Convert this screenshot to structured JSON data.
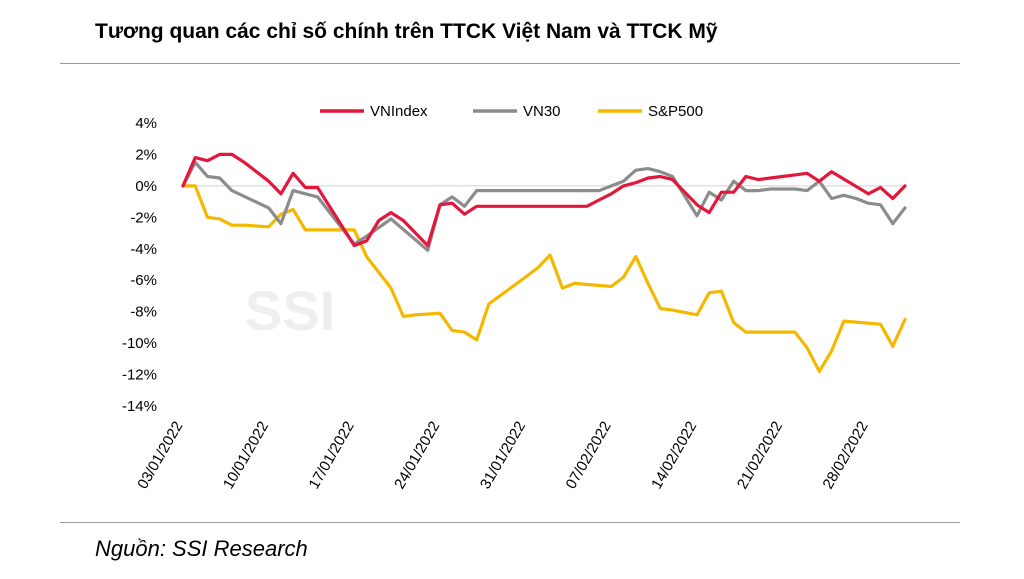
{
  "title": "Tương quan các chỉ số chính trên TTCK Việt Nam và TTCK Mỹ",
  "source": "Nguồn: SSI Research",
  "watermark": "SSI",
  "chart_data": {
    "type": "line",
    "ylim": [
      -14,
      4
    ],
    "yticks": [
      4,
      2,
      0,
      -2,
      -4,
      -6,
      -8,
      -10,
      -12,
      -14
    ],
    "ytick_labels": [
      "4%",
      "2%",
      "0%",
      "-2%",
      "-4%",
      "-6%",
      "-8%",
      "-10%",
      "-12%",
      "-14%"
    ],
    "x_range": [
      0,
      59
    ],
    "xticks": [
      {
        "label": "03/01/2022",
        "x": 0
      },
      {
        "label": "10/01/2022",
        "x": 7
      },
      {
        "label": "17/01/2022",
        "x": 14
      },
      {
        "label": "24/01/2022",
        "x": 21
      },
      {
        "label": "31/01/2022",
        "x": 28
      },
      {
        "label": "07/02/2022",
        "x": 35
      },
      {
        "label": "14/02/2022",
        "x": 42
      },
      {
        "label": "21/02/2022",
        "x": 49
      },
      {
        "label": "28/02/2022",
        "x": 56
      }
    ],
    "legend_position": "top",
    "series": [
      {
        "name": "VNIndex",
        "color": "#e2173b",
        "x": [
          0,
          1,
          2,
          3,
          4,
          5,
          7,
          8,
          9,
          10,
          11,
          14,
          15,
          16,
          17,
          18,
          20,
          21,
          22,
          23,
          24,
          25,
          26,
          27,
          28,
          29,
          30,
          31,
          32,
          33,
          34,
          35,
          36,
          37,
          38,
          39,
          40,
          42,
          43,
          44,
          45,
          46,
          47,
          48,
          49,
          50,
          51,
          52,
          53,
          56,
          57,
          58,
          59
        ],
        "values": [
          0,
          1.8,
          1.6,
          2,
          2,
          1.5,
          0.3,
          -0.5,
          0.8,
          -0.1,
          -0.1,
          -3.8,
          -3.5,
          -2.2,
          -1.7,
          -2.2,
          -3.8,
          -1.2,
          -1.1,
          -1.8,
          -1.3,
          -1.3,
          -1.3,
          -1.3,
          -1.3,
          -1.3,
          -1.3,
          -1.3,
          -1.3,
          -1.3,
          -0.9,
          -0.5,
          0,
          0.2,
          0.5,
          0.6,
          0.4,
          -1.2,
          -1.7,
          -0.4,
          -0.4,
          0.6,
          0.4,
          0.5,
          0.6,
          0.7,
          0.8,
          0.3,
          0.9,
          -0.5,
          -0.1,
          -0.8,
          0
        ]
      },
      {
        "name": "VN30",
        "color": "#8c8c8c",
        "x": [
          0,
          1,
          2,
          3,
          4,
          7,
          8,
          9,
          10,
          11,
          14,
          15,
          17,
          20,
          21,
          22,
          23,
          24,
          25,
          26,
          27,
          28,
          29,
          30,
          31,
          32,
          33,
          34,
          35,
          36,
          37,
          38,
          39,
          40,
          42,
          43,
          44,
          45,
          46,
          47,
          48,
          49,
          50,
          51,
          52,
          53,
          54,
          55,
          56,
          57,
          58,
          59
        ],
        "values": [
          0,
          1.5,
          0.6,
          0.5,
          -0.3,
          -1.4,
          -2.4,
          -0.3,
          -0.5,
          -0.7,
          -3.7,
          -3.2,
          -2.1,
          -4.1,
          -1.2,
          -0.7,
          -1.3,
          -0.3,
          -0.3,
          -0.3,
          -0.3,
          -0.3,
          -0.3,
          -0.3,
          -0.3,
          -0.3,
          -0.3,
          -0.3,
          0,
          0.3,
          1,
          1.1,
          0.9,
          0.6,
          -1.9,
          -0.4,
          -0.9,
          0.3,
          -0.3,
          -0.3,
          -0.2,
          -0.2,
          -0.2,
          -0.3,
          0.3,
          -0.8,
          -0.6,
          -0.8,
          -1.1,
          -1.2,
          -2.4,
          -1.4
        ]
      },
      {
        "name": "S&P500",
        "color": "#f5b800",
        "x": [
          0,
          1,
          2,
          3,
          4,
          5,
          7,
          8,
          9,
          10,
          11,
          14,
          15,
          16,
          17,
          18,
          19,
          21,
          22,
          23,
          24,
          25,
          28,
          29,
          30,
          31,
          32,
          35,
          36,
          37,
          38,
          39,
          40,
          42,
          43,
          44,
          45,
          46,
          49,
          50,
          51,
          52,
          53,
          54,
          57,
          58,
          59
        ],
        "values": [
          0,
          0,
          -2,
          -2.1,
          -2.5,
          -2.5,
          -2.6,
          -1.8,
          -1.5,
          -2.8,
          -2.8,
          -2.8,
          -4.5,
          -5.5,
          -6.5,
          -8.3,
          -8.2,
          -8.1,
          -9.2,
          -9.3,
          -9.8,
          -7.5,
          -5.8,
          -5.2,
          -4.4,
          -6.5,
          -6.2,
          -6.4,
          -5.8,
          -4.5,
          -6.2,
          -7.8,
          -7.9,
          -8.2,
          -6.8,
          -6.7,
          -8.7,
          -9.3,
          -9.3,
          -9.3,
          -10.3,
          -11.8,
          -10.5,
          -8.6,
          -8.8,
          -10.2,
          -8.5
        ]
      }
    ]
  }
}
